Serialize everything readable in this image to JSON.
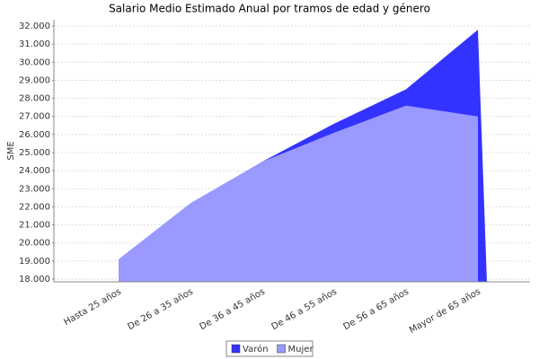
{
  "chart_data": {
    "type": "area",
    "title": "Salario Medio Estimado Anual por tramos de edad y género",
    "y_label": "SME",
    "categories": [
      "Hasta 25  años",
      "De 26  a 35  años",
      "De 36  a 45  años",
      "De 46  a 55  años",
      "De 56  a 65  años",
      "Mayor de 65  años"
    ],
    "series": [
      {
        "name": "Varón",
        "color": "#3333ff",
        "values": [
          19000,
          22100,
          24500,
          26600,
          28500,
          31800
        ]
      },
      {
        "name": "Mujer",
        "color": "#9999ff",
        "values": [
          19100,
          22200,
          24500,
          26100,
          27600,
          27000
        ]
      }
    ],
    "ylim": [
      17850,
      32350
    ],
    "yticks": [
      {
        "value": 18000,
        "label": "18.000"
      },
      {
        "value": 19000,
        "label": "19.000"
      },
      {
        "value": 20000,
        "label": "20.000"
      },
      {
        "value": 21000,
        "label": "21.000"
      },
      {
        "value": 22000,
        "label": "22.000"
      },
      {
        "value": 23000,
        "label": "23.000"
      },
      {
        "value": 24000,
        "label": "24.000"
      },
      {
        "value": 25000,
        "label": "25.000"
      },
      {
        "value": 26000,
        "label": "26.000"
      },
      {
        "value": 27000,
        "label": "27.000"
      },
      {
        "value": 28000,
        "label": "28.000"
      },
      {
        "value": 29000,
        "label": "29.000"
      },
      {
        "value": 30000,
        "label": "30.000"
      },
      {
        "value": 31000,
        "label": "31.000"
      },
      {
        "value": 32000,
        "label": "32.000"
      }
    ],
    "grid": true
  }
}
